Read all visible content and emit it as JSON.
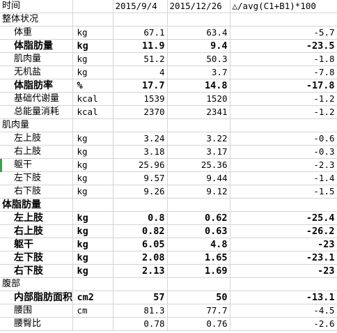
{
  "columns": [
    "时间",
    "",
    "2015/9/4",
    "2015/12/26",
    "△/avg(C1+B1)*100"
  ],
  "colors": {
    "gridline": "#d4d4d4",
    "selection_marker": "#3aa14a"
  },
  "rows": [
    {
      "type": "section",
      "name": "整体状况"
    },
    {
      "type": "data",
      "name": "体重",
      "unit": "kg",
      "v1": "67.1",
      "v2": "63.4",
      "delta": "-5.7"
    },
    {
      "type": "data",
      "bold": true,
      "name": "体脂肪量",
      "unit": "kg",
      "v1": "11.9",
      "v2": "9.4",
      "delta": "-23.5"
    },
    {
      "type": "data",
      "name": "肌肉量",
      "unit": "kg",
      "v1": "51.2",
      "v2": "50.3",
      "delta": "-1.8"
    },
    {
      "type": "data",
      "name": "无机盐",
      "unit": "kg",
      "v1": "4",
      "v2": "3.7",
      "delta": "-7.8"
    },
    {
      "type": "data",
      "bold": true,
      "name": "体脂肪率",
      "unit": "%",
      "v1": "17.7",
      "v2": "14.8",
      "delta": "-17.8"
    },
    {
      "type": "data",
      "name": "基础代谢量",
      "unit": "kcal",
      "v1": "1539",
      "v2": "1520",
      "delta": "-1.2"
    },
    {
      "type": "data",
      "name": "总能量消耗",
      "unit": "kcal",
      "v1": "2370",
      "v2": "2341",
      "delta": "-1.2"
    },
    {
      "type": "section",
      "name": "肌肉量"
    },
    {
      "type": "data",
      "name": "左上肢",
      "unit": "kg",
      "v1": "3.24",
      "v2": "3.22",
      "delta": "-0.6"
    },
    {
      "type": "data",
      "name": "右上肢",
      "unit": "kg",
      "v1": "3.18",
      "v2": "3.17",
      "delta": "-0.3"
    },
    {
      "type": "data",
      "name": "躯干",
      "unit": "kg",
      "v1": "25.96",
      "v2": "25.36",
      "delta": "-2.3",
      "marked": true
    },
    {
      "type": "data",
      "name": "左下肢",
      "unit": "kg",
      "v1": "9.57",
      "v2": "9.44",
      "delta": "-1.4"
    },
    {
      "type": "data",
      "name": "右下肢",
      "unit": "kg",
      "v1": "9.26",
      "v2": "9.12",
      "delta": "-1.5"
    },
    {
      "type": "section",
      "bold": true,
      "name": "体脂肪量"
    },
    {
      "type": "data",
      "bold": true,
      "name": "左上肢",
      "unit": "kg",
      "v1": "0.8",
      "v2": "0.62",
      "delta": "-25.4"
    },
    {
      "type": "data",
      "bold": true,
      "name": "右上肢",
      "unit": "kg",
      "v1": "0.82",
      "v2": "0.63",
      "delta": "-26.2"
    },
    {
      "type": "data",
      "bold": true,
      "name": "躯干",
      "unit": "kg",
      "v1": "6.05",
      "v2": "4.8",
      "delta": "-23"
    },
    {
      "type": "data",
      "bold": true,
      "name": "左下肢",
      "unit": "kg",
      "v1": "2.08",
      "v2": "1.65",
      "delta": "-23.1"
    },
    {
      "type": "data",
      "bold": true,
      "name": "右下肢",
      "unit": "kg",
      "v1": "2.13",
      "v2": "1.69",
      "delta": "-23"
    },
    {
      "type": "section",
      "name": "腹部"
    },
    {
      "type": "data",
      "bold": true,
      "name": "内部脂肪面积",
      "unit": "cm2",
      "v1": "57",
      "v2": "50",
      "delta": "-13.1"
    },
    {
      "type": "data",
      "name": "腰围",
      "unit": "cm",
      "v1": "81.3",
      "v2": "77.7",
      "delta": "-4.5"
    },
    {
      "type": "data",
      "name": "腰臀比",
      "unit": "",
      "v1": "0.78",
      "v2": "0.76",
      "delta": "-2.6"
    }
  ]
}
